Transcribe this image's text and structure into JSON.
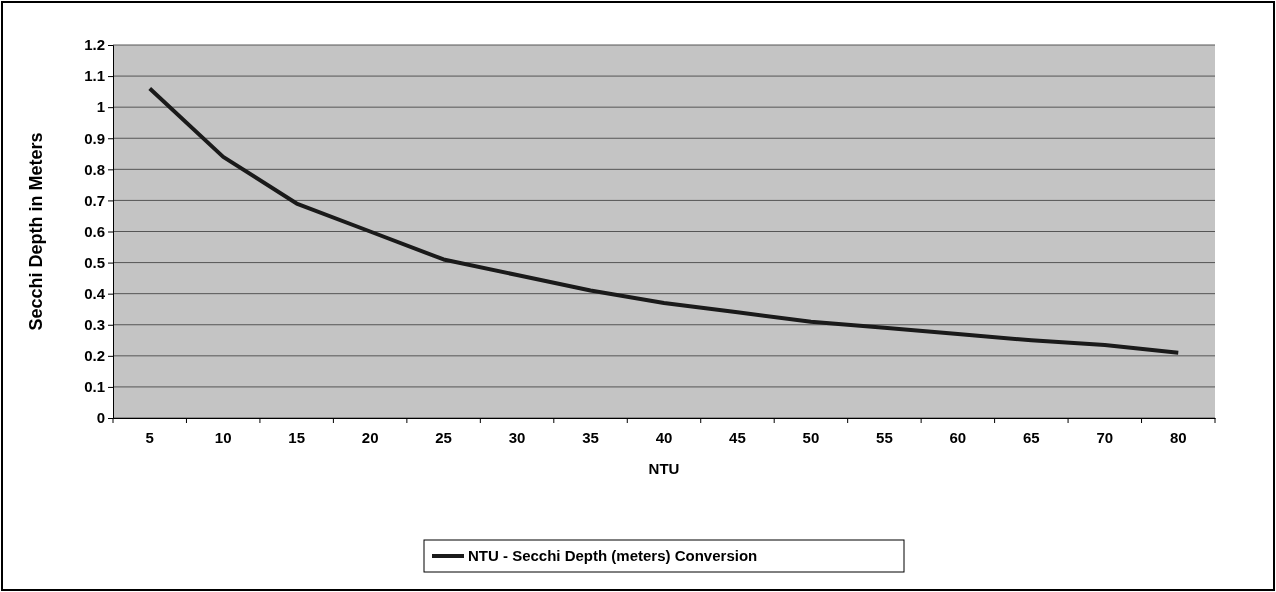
{
  "chart_data": {
    "type": "line",
    "xlabel": "NTU",
    "ylabel": "Secchi Depth in Meters",
    "categories": [
      "5",
      "10",
      "15",
      "20",
      "25",
      "30",
      "35",
      "40",
      "45",
      "50",
      "55",
      "60",
      "65",
      "70",
      "80"
    ],
    "series": [
      {
        "name": "NTU - Secchi Depth (meters) Conversion",
        "color": "#1a1a1a",
        "values": [
          1.06,
          0.84,
          0.69,
          0.6,
          0.51,
          0.46,
          0.41,
          0.37,
          0.34,
          0.31,
          0.29,
          0.27,
          0.25,
          0.235,
          0.21
        ]
      }
    ],
    "ylim": [
      0,
      1.2
    ],
    "yticks": [
      0,
      0.1,
      0.2,
      0.3,
      0.4,
      0.5,
      0.6,
      0.7,
      0.8,
      0.9,
      1,
      1.1,
      1.2
    ],
    "grid": "y",
    "legend": "bottom",
    "marker": "none",
    "line_style": "solid"
  }
}
